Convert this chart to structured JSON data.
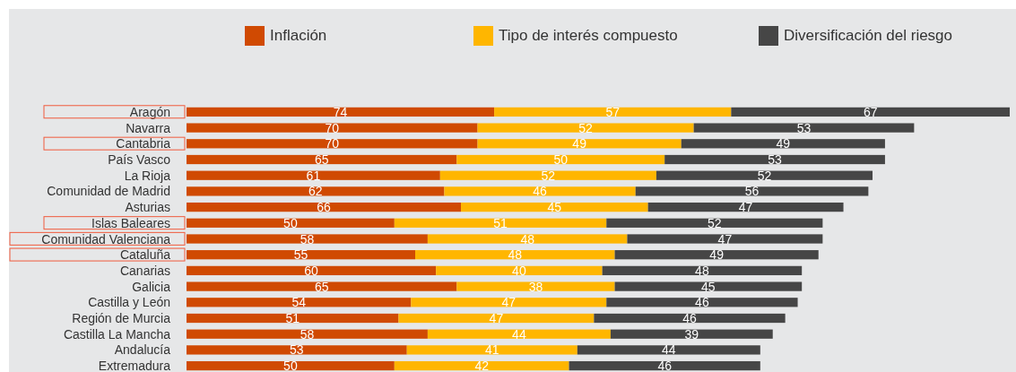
{
  "chart_data": {
    "type": "bar",
    "orientation": "horizontal",
    "stacked": true,
    "legend": "top",
    "data_labels": true,
    "categories": [
      "Aragón",
      "Navarra",
      "Cantabria",
      "País Vasco",
      "La Rioja",
      "Comunidad de Madrid",
      "Asturias",
      "Islas Baleares",
      "Comunidad Valenciana",
      "Cataluña",
      "Canarias",
      "Galicia",
      "Castilla y León",
      "Región de Murcia",
      "Castilla La Mancha",
      "Andalucía",
      "Extremadura"
    ],
    "series": [
      {
        "name": "Inflación",
        "color": "#d04a02",
        "values": [
          74,
          70,
          70,
          65,
          61,
          62,
          66,
          50,
          58,
          55,
          60,
          65,
          54,
          51,
          58,
          53,
          50
        ]
      },
      {
        "name": "Tipo de interés compuesto",
        "color": "#ffb600",
        "values": [
          57,
          52,
          49,
          50,
          52,
          46,
          45,
          51,
          48,
          48,
          40,
          38,
          47,
          47,
          44,
          41,
          42
        ]
      },
      {
        "name": "Diversificación del riesgo",
        "color": "#464646",
        "values": [
          67,
          53,
          49,
          53,
          52,
          56,
          47,
          52,
          47,
          49,
          48,
          45,
          46,
          46,
          39,
          44,
          46
        ]
      }
    ]
  }
}
